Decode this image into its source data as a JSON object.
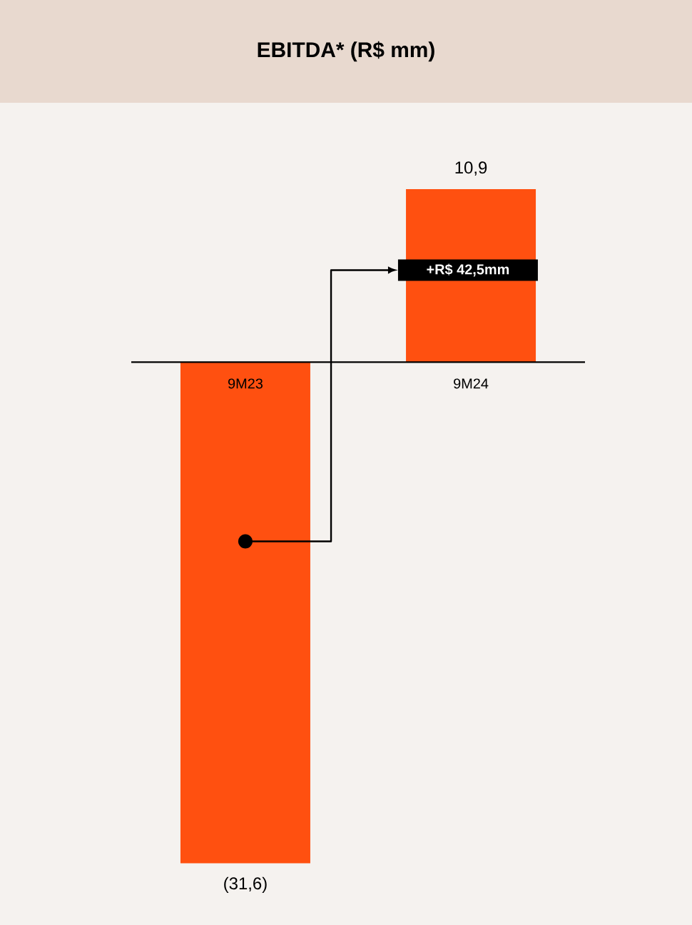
{
  "chart_data": {
    "type": "bar",
    "title": "EBITDA* (R$ mm)",
    "categories": [
      "9M23",
      "9M24"
    ],
    "values": [
      -31.6,
      10.9
    ],
    "value_labels": [
      "(31,6)",
      "10,9"
    ],
    "color": "#ff5010",
    "annotations": [
      "+R$ 42,5mm"
    ]
  }
}
